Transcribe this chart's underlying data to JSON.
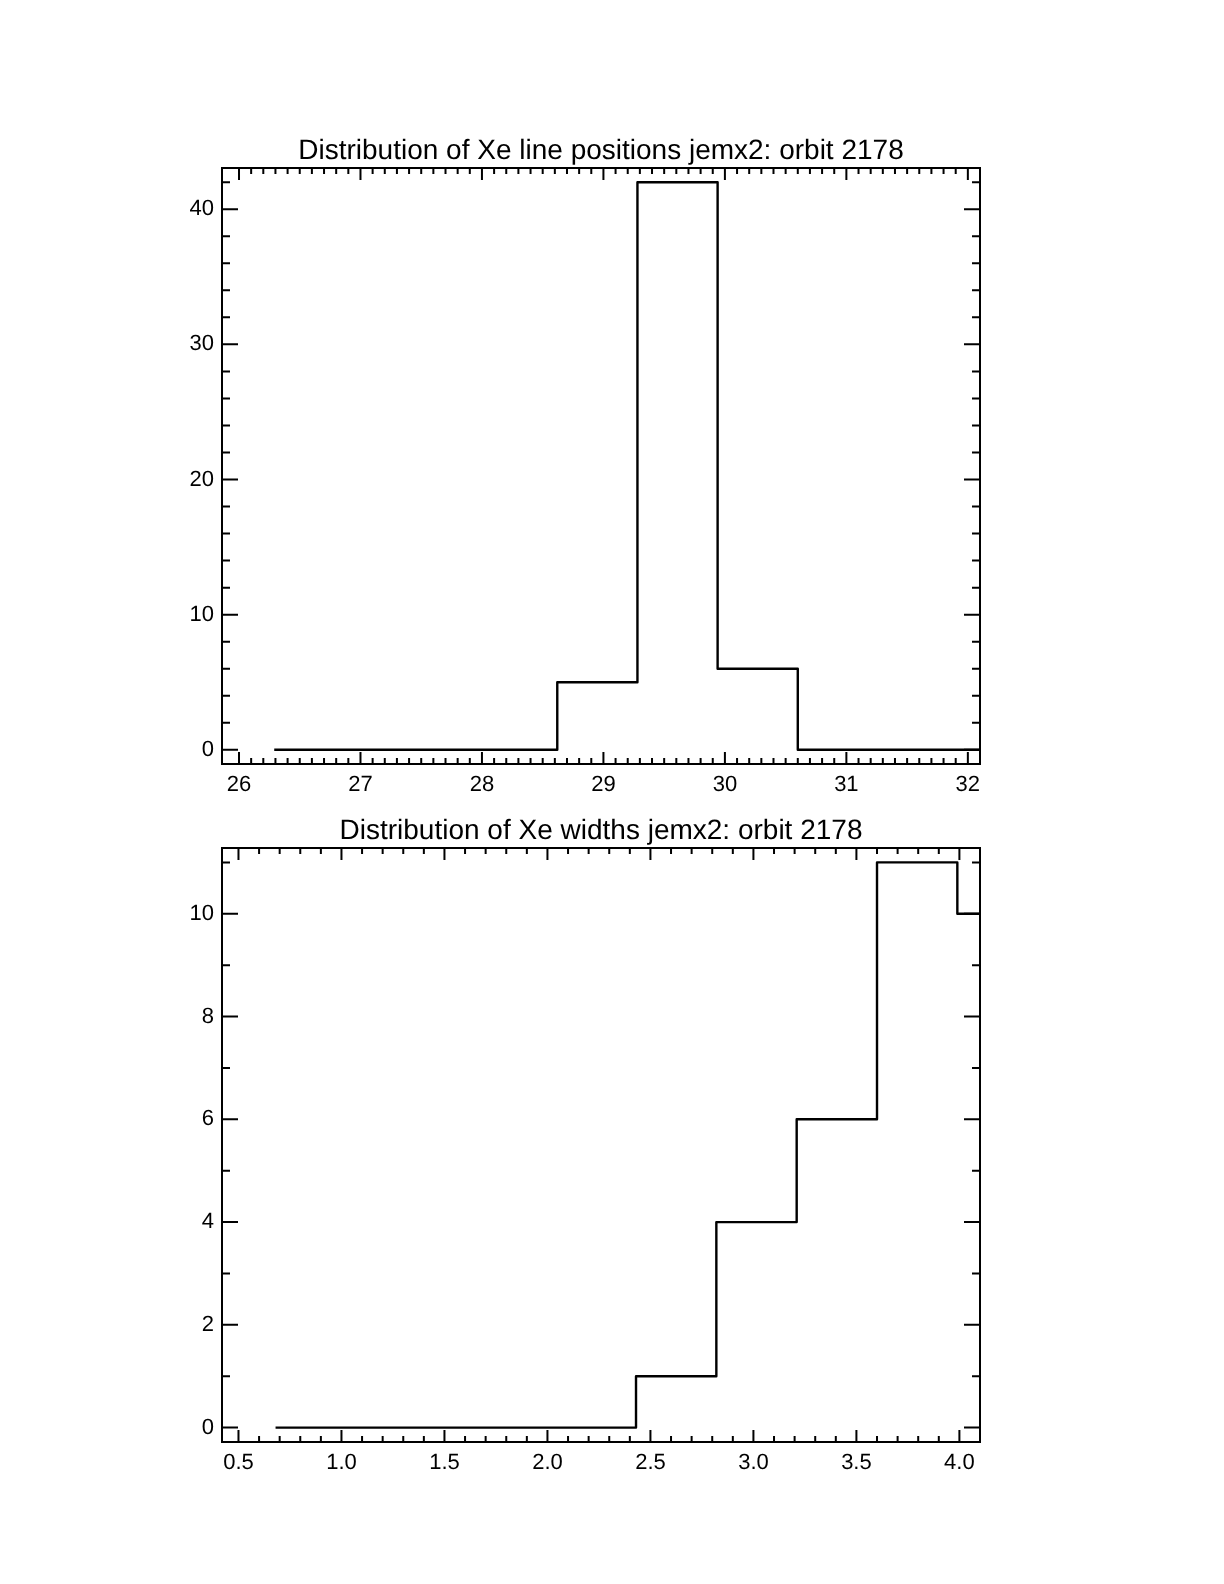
{
  "chart_data": [
    {
      "type": "histogram",
      "title": "Distribution of Xe line positions jemx2: orbit 2178",
      "bins": [
        26.29,
        28.62,
        29.28,
        29.94,
        30.6,
        32.1
      ],
      "values": [
        0,
        5,
        42,
        6,
        0
      ],
      "color": "#000000",
      "xlim": [
        25.86,
        32.1
      ],
      "ylim": [
        -1.05,
        43.05
      ],
      "xticks": [
        26,
        {
          "value": 26.1,
          "label": null
        },
        {
          "value": 26.2,
          "label": null
        },
        {
          "value": 26.3,
          "label": null
        },
        {
          "value": 26.4,
          "label": null
        },
        {
          "value": 26.5,
          "label": null
        },
        {
          "value": 26.6,
          "label": null
        },
        {
          "value": 26.7,
          "label": null
        },
        {
          "value": 26.8,
          "label": null
        },
        {
          "value": 26.9,
          "label": null
        },
        27,
        {
          "value": 27.1,
          "label": null
        },
        {
          "value": 27.2,
          "label": null
        },
        {
          "value": 27.3,
          "label": null
        },
        {
          "value": 27.4,
          "label": null
        },
        {
          "value": 27.5,
          "label": null
        },
        {
          "value": 27.6,
          "label": null
        },
        {
          "value": 27.7,
          "label": null
        },
        {
          "value": 27.8,
          "label": null
        },
        {
          "value": 27.9,
          "label": null
        },
        28,
        {
          "value": 28.1,
          "label": null
        },
        {
          "value": 28.2,
          "label": null
        },
        {
          "value": 28.3,
          "label": null
        },
        {
          "value": 28.4,
          "label": null
        },
        {
          "value": 28.5,
          "label": null
        },
        {
          "value": 28.6,
          "label": null
        },
        {
          "value": 28.7,
          "label": null
        },
        {
          "value": 28.8,
          "label": null
        },
        {
          "value": 28.9,
          "label": null
        },
        29,
        {
          "value": 29.1,
          "label": null
        },
        {
          "value": 29.2,
          "label": null
        },
        {
          "value": 29.3,
          "label": null
        },
        {
          "value": 29.4,
          "label": null
        },
        {
          "value": 29.5,
          "label": null
        },
        {
          "value": 29.6,
          "label": null
        },
        {
          "value": 29.7,
          "label": null
        },
        {
          "value": 29.8,
          "label": null
        },
        {
          "value": 29.9,
          "label": null
        },
        30,
        {
          "value": 30.1,
          "label": null
        },
        {
          "value": 30.2,
          "label": null
        },
        {
          "value": 30.3,
          "label": null
        },
        {
          "value": 30.4,
          "label": null
        },
        {
          "value": 30.5,
          "label": null
        },
        {
          "value": 30.6,
          "label": null
        },
        {
          "value": 30.7,
          "label": null
        },
        {
          "value": 30.8,
          "label": null
        },
        {
          "value": 30.9,
          "label": null
        },
        31,
        {
          "value": 31.1,
          "label": null
        },
        {
          "value": 31.2,
          "label": null
        },
        {
          "value": 31.3,
          "label": null
        },
        {
          "value": 31.4,
          "label": null
        },
        {
          "value": 31.5,
          "label": null
        },
        {
          "value": 31.6,
          "label": null
        },
        {
          "value": 31.7,
          "label": null
        },
        {
          "value": 31.8,
          "label": null
        },
        {
          "value": 31.9,
          "label": null
        },
        32
      ],
      "yticks": [
        0,
        {
          "value": 2,
          "label": null
        },
        {
          "value": 4,
          "label": null
        },
        {
          "value": 6,
          "label": null
        },
        {
          "value": 8,
          "label": null
        },
        10,
        {
          "value": 12,
          "label": null
        },
        {
          "value": 14,
          "label": null
        },
        {
          "value": 16,
          "label": null
        },
        {
          "value": 18,
          "label": null
        },
        20,
        {
          "value": 22,
          "label": null
        },
        {
          "value": 24,
          "label": null
        },
        {
          "value": 26,
          "label": null
        },
        {
          "value": 28,
          "label": null
        },
        30,
        {
          "value": 32,
          "label": null
        },
        {
          "value": 34,
          "label": null
        },
        {
          "value": 36,
          "label": null
        },
        {
          "value": 38,
          "label": null
        },
        40,
        {
          "value": 42,
          "label": null
        }
      ]
    },
    {
      "type": "histogram",
      "title": "Distribution of Xe widths jemx2: orbit 2178",
      "bins": [
        0.68,
        2.43,
        2.82,
        3.21,
        3.6,
        3.99,
        4.1
      ],
      "values": [
        0,
        1,
        4,
        6,
        11,
        10
      ],
      "color": "#000000",
      "xlim": [
        0.42,
        4.1
      ],
      "ylim": [
        -0.28,
        11.28
      ],
      "xticks": [
        0.5,
        {
          "value": 0.6,
          "label": null
        },
        {
          "value": 0.7,
          "label": null
        },
        {
          "value": 0.8,
          "label": null
        },
        {
          "value": 0.9,
          "label": null
        },
        {
          "value": 1,
          "label": "1.0"
        },
        {
          "value": 1.1,
          "label": null
        },
        {
          "value": 1.2,
          "label": null
        },
        {
          "value": 1.3,
          "label": null
        },
        {
          "value": 1.4,
          "label": null
        },
        1.5,
        {
          "value": 1.6,
          "label": null
        },
        {
          "value": 1.7,
          "label": null
        },
        {
          "value": 1.8,
          "label": null
        },
        {
          "value": 1.9,
          "label": null
        },
        {
          "value": 2,
          "label": "2.0"
        },
        {
          "value": 2.1,
          "label": null
        },
        {
          "value": 2.2,
          "label": null
        },
        {
          "value": 2.3,
          "label": null
        },
        {
          "value": 2.4,
          "label": null
        },
        2.5,
        {
          "value": 2.6,
          "label": null
        },
        {
          "value": 2.7,
          "label": null
        },
        {
          "value": 2.8,
          "label": null
        },
        {
          "value": 2.9,
          "label": null
        },
        {
          "value": 3,
          "label": "3.0"
        },
        {
          "value": 3.1,
          "label": null
        },
        {
          "value": 3.2,
          "label": null
        },
        {
          "value": 3.3,
          "label": null
        },
        {
          "value": 3.4,
          "label": null
        },
        3.5,
        {
          "value": 3.6,
          "label": null
        },
        {
          "value": 3.7,
          "label": null
        },
        {
          "value": 3.8,
          "label": null
        },
        {
          "value": 3.9,
          "label": null
        },
        {
          "value": 4,
          "label": "4.0"
        }
      ],
      "yticks": [
        0,
        {
          "value": 1,
          "label": null
        },
        2,
        {
          "value": 3,
          "label": null
        },
        4,
        {
          "value": 5,
          "label": null
        },
        6,
        {
          "value": 7,
          "label": null
        },
        8,
        {
          "value": 9,
          "label": null
        },
        10,
        {
          "value": 11,
          "label": null
        }
      ]
    }
  ]
}
